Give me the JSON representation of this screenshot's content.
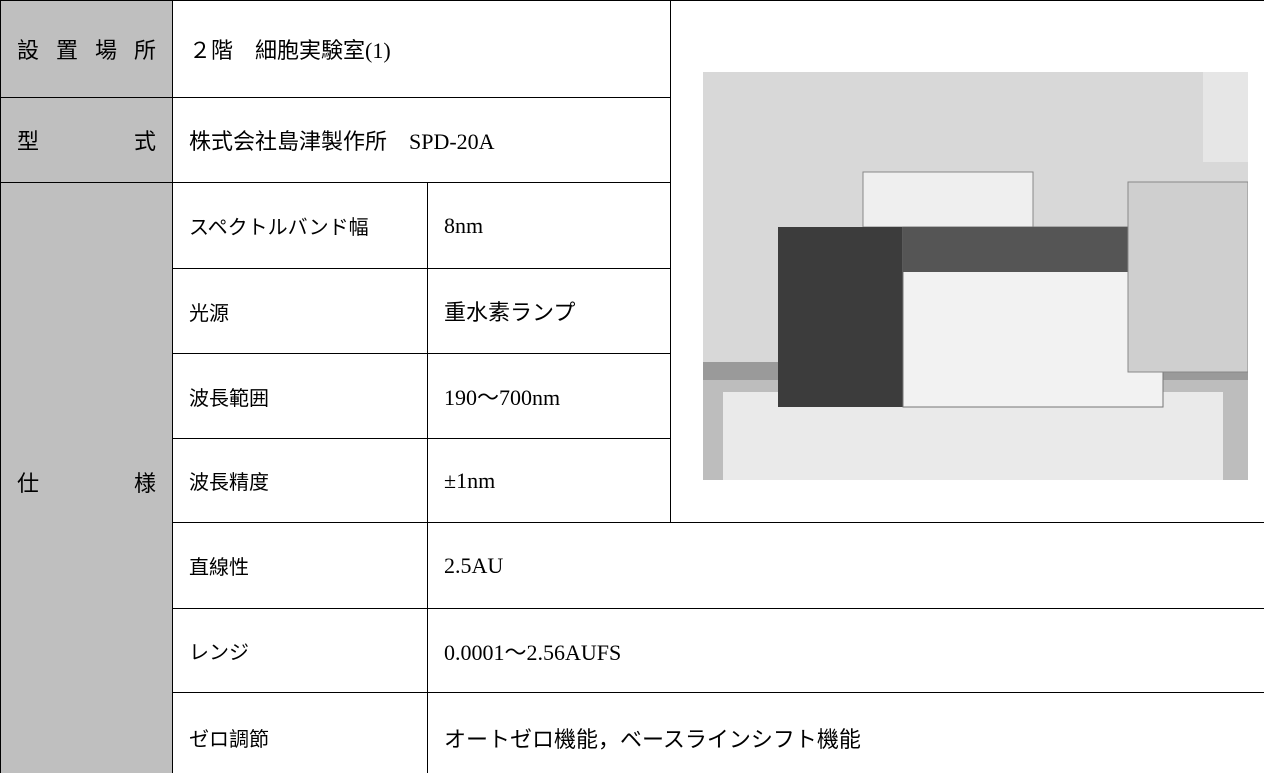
{
  "location": {
    "label": "設置場所",
    "value": "２階　細胞実験室(1)"
  },
  "model": {
    "label": "型　式",
    "value": "株式会社島津製作所　SPD-20A"
  },
  "spec": {
    "label": "仕　様",
    "items": [
      {
        "name": "スペクトルバンド幅",
        "value": "8nm"
      },
      {
        "name": "光源",
        "value": "重水素ランプ"
      },
      {
        "name": "波長範囲",
        "value": "190～700nm"
      },
      {
        "name": "波長精度",
        "value": "±1nm"
      },
      {
        "name": "直線性",
        "value": "2.5AU"
      },
      {
        "name": "レンジ",
        "value": "0.0001～2.56AUFS"
      },
      {
        "name": "ゼロ調節",
        "value": "オートゼロ機能，ベースラインシフト機能"
      }
    ]
  }
}
